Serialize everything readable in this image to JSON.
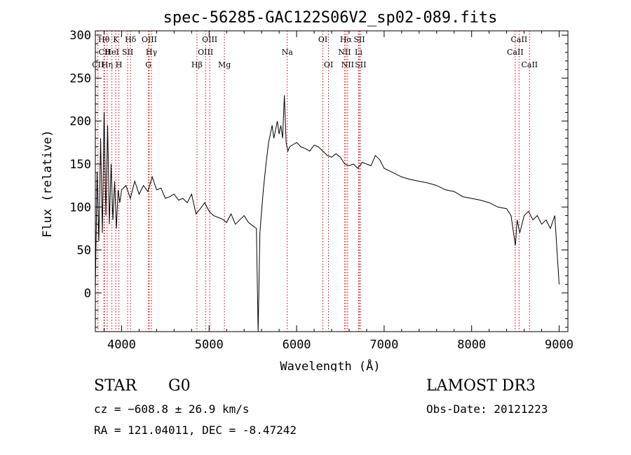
{
  "chart_data": {
    "type": "line",
    "title": "spec-56285-GAC122S06V2_sp02-089.fits",
    "xlabel": "Wavelength (Å)",
    "ylabel": "Flux (relative)",
    "xlim": [
      3700,
      9100
    ],
    "ylim": [
      -45,
      305
    ],
    "xticks": [
      4000,
      5000,
      6000,
      7000,
      8000,
      9000
    ],
    "xtick_labels": [
      "4000",
      "5000",
      "6000",
      "7000",
      "8000",
      "9000"
    ],
    "yticks": [
      0,
      50,
      100,
      150,
      200,
      250,
      300
    ],
    "ytick_labels": [
      "0",
      "50",
      "100",
      "150",
      "200",
      "250",
      "300"
    ],
    "grid": false,
    "series": [
      {
        "name": "flux",
        "x": [
          3700,
          3720,
          3740,
          3760,
          3780,
          3800,
          3820,
          3840,
          3860,
          3880,
          3900,
          3920,
          3940,
          3960,
          3980,
          4000,
          4050,
          4100,
          4150,
          4200,
          4250,
          4300,
          4350,
          4400,
          4450,
          4500,
          4550,
          4600,
          4650,
          4700,
          4750,
          4800,
          4850,
          4900,
          4950,
          5000,
          5050,
          5100,
          5150,
          5200,
          5250,
          5300,
          5350,
          5400,
          5450,
          5500,
          5540,
          5560,
          5580,
          5600,
          5620,
          5650,
          5680,
          5700,
          5720,
          5740,
          5760,
          5780,
          5800,
          5820,
          5840,
          5860,
          5880,
          5900,
          5920,
          5950,
          6000,
          6050,
          6100,
          6150,
          6200,
          6250,
          6300,
          6350,
          6400,
          6450,
          6500,
          6550,
          6600,
          6650,
          6700,
          6750,
          6800,
          6850,
          6900,
          6950,
          7000,
          7100,
          7200,
          7300,
          7400,
          7500,
          7600,
          7700,
          7800,
          7900,
          8000,
          8100,
          8200,
          8300,
          8400,
          8450,
          8500,
          8520,
          8550,
          8600,
          8650,
          8700,
          8750,
          8800,
          8850,
          8900,
          8950,
          9000
        ],
        "y": [
          5,
          140,
          60,
          180,
          70,
          210,
          90,
          195,
          80,
          150,
          85,
          130,
          75,
          120,
          105,
          120,
          125,
          110,
          130,
          115,
          125,
          118,
          135,
          120,
          122,
          110,
          112,
          115,
          108,
          110,
          105,
          115,
          92,
          98,
          105,
          95,
          90,
          88,
          86,
          82,
          92,
          80,
          85,
          90,
          82,
          78,
          75,
          -45,
          70,
          95,
          120,
          150,
          175,
          185,
          195,
          180,
          190,
          200,
          185,
          195,
          180,
          230,
          175,
          165,
          170,
          172,
          175,
          170,
          168,
          165,
          172,
          170,
          165,
          160,
          158,
          162,
          158,
          150,
          148,
          150,
          145,
          152,
          150,
          148,
          160,
          155,
          145,
          140,
          135,
          132,
          130,
          128,
          125,
          120,
          118,
          112,
          110,
          108,
          105,
          100,
          98,
          90,
          55,
          85,
          70,
          90,
          95,
          85,
          90,
          80,
          85,
          75,
          90,
          10
        ]
      }
    ],
    "lines": [
      {
        "name": "CII",
        "wavelength": 3730,
        "row": 2
      },
      {
        "name": "Hθ",
        "wavelength": 3798,
        "row": 0
      },
      {
        "name": "CII",
        "wavelength": 3805,
        "row": 1
      },
      {
        "name": "Hη",
        "wavelength": 3835,
        "row": 2
      },
      {
        "name": "HeI",
        "wavelength": 3889,
        "row": 1
      },
      {
        "name": "K",
        "wavelength": 3934,
        "row": 0
      },
      {
        "name": "H",
        "wavelength": 3969,
        "row": 2
      },
      {
        "name": "SII",
        "wavelength": 4069,
        "row": 1
      },
      {
        "name": "Hδ",
        "wavelength": 4102,
        "row": 0
      },
      {
        "name": "OIII",
        "wavelength": 4317,
        "row": 0
      },
      {
        "name": "Hγ",
        "wavelength": 4341,
        "row": 1
      },
      {
        "name": "G",
        "wavelength": 4306,
        "row": 2
      },
      {
        "name": "Hβ",
        "wavelength": 4861,
        "row": 2
      },
      {
        "name": "OIII",
        "wavelength": 4959,
        "row": 1
      },
      {
        "name": "OIII",
        "wavelength": 5007,
        "row": 0
      },
      {
        "name": "Mg",
        "wavelength": 5175,
        "row": 2
      },
      {
        "name": "Na",
        "wavelength": 5893,
        "row": 1
      },
      {
        "name": "OI",
        "wavelength": 6300,
        "row": 0
      },
      {
        "name": "OI",
        "wavelength": 6364,
        "row": 2
      },
      {
        "name": "NII",
        "wavelength": 6548,
        "row": 1
      },
      {
        "name": "Hα",
        "wavelength": 6563,
        "row": 0
      },
      {
        "name": "NII",
        "wavelength": 6583,
        "row": 2
      },
      {
        "name": "SII",
        "wavelength": 6716,
        "row": 0
      },
      {
        "name": "Li",
        "wavelength": 6708,
        "row": 1
      },
      {
        "name": "SII",
        "wavelength": 6731,
        "row": 2
      },
      {
        "name": "CaII",
        "wavelength": 8498,
        "row": 1
      },
      {
        "name": "CaII",
        "wavelength": 8542,
        "row": 0
      },
      {
        "name": "CaII",
        "wavelength": 8662,
        "row": 2
      }
    ],
    "line_color": "#cc0000",
    "spectrum_color": "#000000"
  },
  "info": {
    "object_class": "STAR",
    "subclass": "G0",
    "survey": "LAMOST DR3",
    "cz": "cz = −608.8 ± 26.9 km/s",
    "obs_date": "Obs-Date: 20121223",
    "radec": "RA = 121.04011, DEC =  -8.47242"
  }
}
